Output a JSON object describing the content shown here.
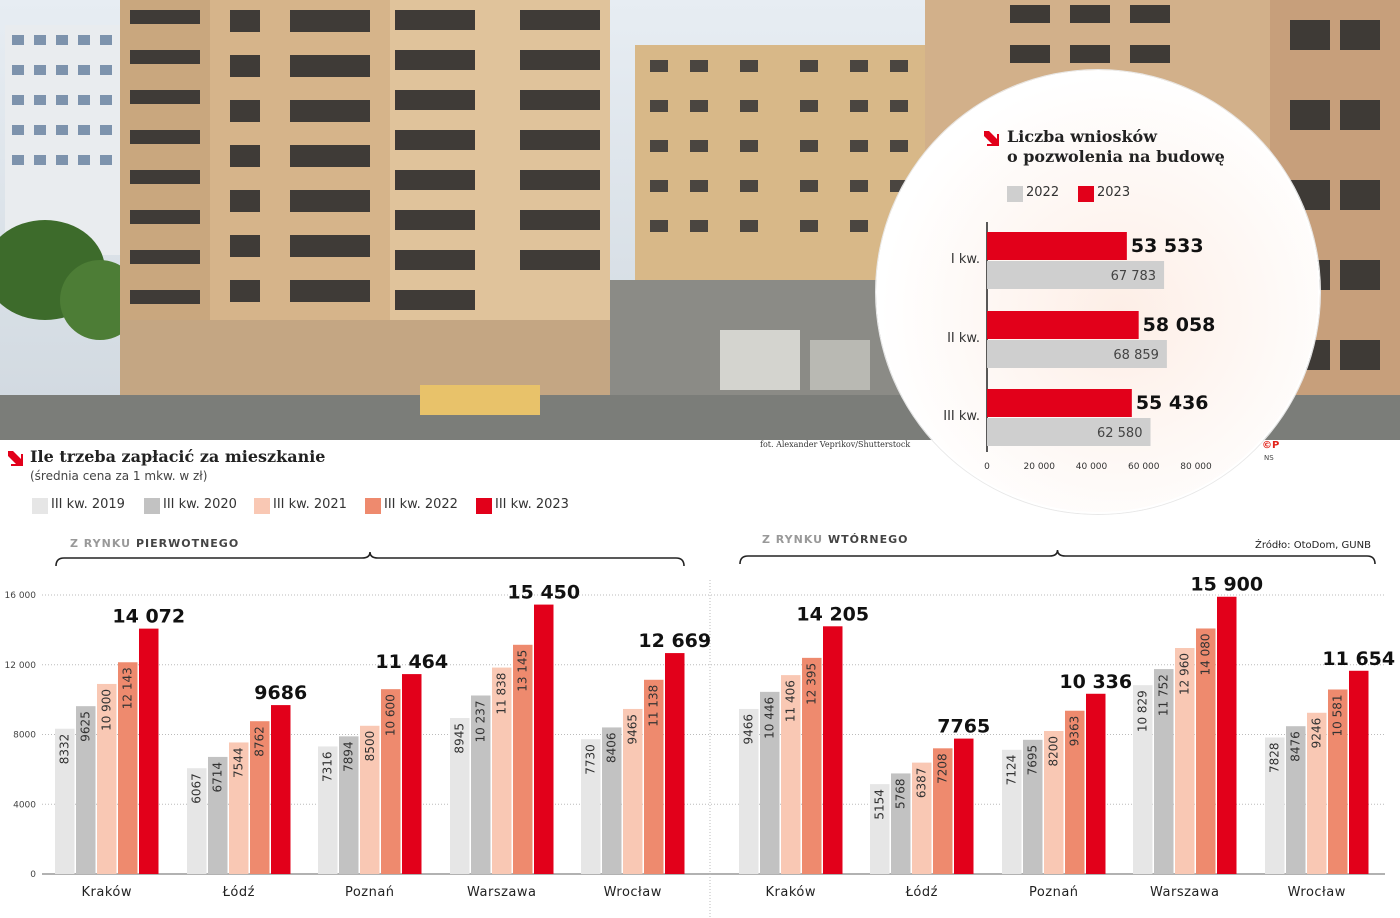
{
  "photo": {
    "credit": "fot. Alexander Veprikov/Shutterstock"
  },
  "colors": {
    "y2019": "#e6e6e6",
    "y2020": "#c2c2c2",
    "y2021": "#f9c8b4",
    "y2022": "#ee8a6e",
    "y2023": "#e2001a",
    "permit2022": "#cfcfcf",
    "permit2023": "#e2001a",
    "accent": "#e2001a"
  },
  "main": {
    "title": "Ile trzeba zapłacić za mieszkanie",
    "subtitle": "(średnia cena za 1 mkw. w zł)",
    "legend": [
      "III kw. 2019",
      "III kw. 2020",
      "III kw. 2021",
      "III kw. 2022",
      "III kw. 2023"
    ],
    "primary_label": {
      "pre": "Z RYNKU",
      "main": "PIERWOTNEGO"
    },
    "secondary_label": {
      "pre": "Z RYNKU",
      "main": "WTÓRNEGO"
    },
    "source": "Źródło: OtoDom, GUNB"
  },
  "permits": {
    "title_line1": "Liczba wniosków",
    "title_line2": "o pozwolenia na budowę",
    "legend": [
      "2022",
      "2023"
    ],
    "copyright": "©P",
    "initials": "NS"
  },
  "chart_data": [
    {
      "type": "bar",
      "title": "Ile trzeba zapłacić za mieszkanie — Z RYNKU PIERWOTNEGO",
      "ylabel": "średnia cena za 1 mkw. w zł",
      "ylim": [
        0,
        16000
      ],
      "yticks": [
        0,
        4000,
        8000,
        12000,
        16000
      ],
      "ytick_labels": [
        "0",
        "4000",
        "8000",
        "12 000",
        "16 000"
      ],
      "categories": [
        "Kraków",
        "Łódź",
        "Poznań",
        "Warszawa",
        "Wrocław"
      ],
      "series": [
        {
          "name": "III kw. 2019",
          "values": [
            8332,
            6067,
            7316,
            8945,
            7730
          ],
          "labels": [
            "8332",
            "6067",
            "7316",
            "8945",
            "7730"
          ]
        },
        {
          "name": "III kw. 2020",
          "values": [
            9625,
            6714,
            7894,
            10237,
            8406
          ],
          "labels": [
            "9625",
            "6714",
            "7894",
            "10 237",
            "8406"
          ]
        },
        {
          "name": "III kw. 2021",
          "values": [
            10900,
            7544,
            8500,
            11838,
            9465
          ],
          "labels": [
            "10 900",
            "7544",
            "8500",
            "11 838",
            "9465"
          ]
        },
        {
          "name": "III kw. 2022",
          "values": [
            12143,
            8762,
            10600,
            13145,
            11138
          ],
          "labels": [
            "12 143",
            "8762",
            "10 600",
            "13 145",
            "11 138"
          ]
        },
        {
          "name": "III kw. 2023",
          "values": [
            14072,
            9686,
            11464,
            15450,
            12669
          ],
          "labels": [
            "14 072",
            "9686",
            "11 464",
            "15 450",
            "12 669"
          ]
        }
      ]
    },
    {
      "type": "bar",
      "title": "Ile trzeba zapłacić za mieszkanie — Z RYNKU WTÓRNEGO",
      "ylabel": "średnia cena za 1 mkw. w zł",
      "ylim": [
        0,
        16000
      ],
      "categories": [
        "Kraków",
        "Łódź",
        "Poznań",
        "Warszawa",
        "Wrocław"
      ],
      "series": [
        {
          "name": "III kw. 2019",
          "values": [
            9466,
            5154,
            7124,
            10829,
            7828
          ],
          "labels": [
            "9466",
            "5154",
            "7124",
            "10 829",
            "7828"
          ]
        },
        {
          "name": "III kw. 2020",
          "values": [
            10446,
            5768,
            7695,
            11752,
            8476
          ],
          "labels": [
            "10 446",
            "5768",
            "7695",
            "11 752",
            "8476"
          ]
        },
        {
          "name": "III kw. 2021",
          "values": [
            11406,
            6387,
            8200,
            12960,
            9246
          ],
          "labels": [
            "11 406",
            "6387",
            "8200",
            "12 960",
            "9246"
          ]
        },
        {
          "name": "III kw. 2022",
          "values": [
            12395,
            7208,
            9363,
            14080,
            10581
          ],
          "labels": [
            "12 395",
            "7208",
            "9363",
            "14 080",
            "10 581"
          ]
        },
        {
          "name": "III kw. 2023",
          "values": [
            14205,
            7765,
            10336,
            15900,
            11654
          ],
          "labels": [
            "14 205",
            "7765",
            "10 336",
            "15 900",
            "11 654"
          ]
        }
      ]
    },
    {
      "type": "bar",
      "orientation": "horizontal",
      "title": "Liczba wniosków o pozwolenia na budowę",
      "xlim": [
        0,
        80000
      ],
      "xticks": [
        0,
        20000,
        40000,
        60000,
        80000
      ],
      "xtick_labels": [
        "0",
        "20 000",
        "40 000",
        "60 000",
        "80 000"
      ],
      "categories": [
        "I kw.",
        "II kw.",
        "III kw."
      ],
      "series": [
        {
          "name": "2023",
          "values": [
            53533,
            58058,
            55436
          ],
          "labels": [
            "53 533",
            "58 058",
            "55 436"
          ]
        },
        {
          "name": "2022",
          "values": [
            67783,
            68859,
            62580
          ],
          "labels": [
            "67 783",
            "68 859",
            "62 580"
          ]
        }
      ]
    }
  ]
}
